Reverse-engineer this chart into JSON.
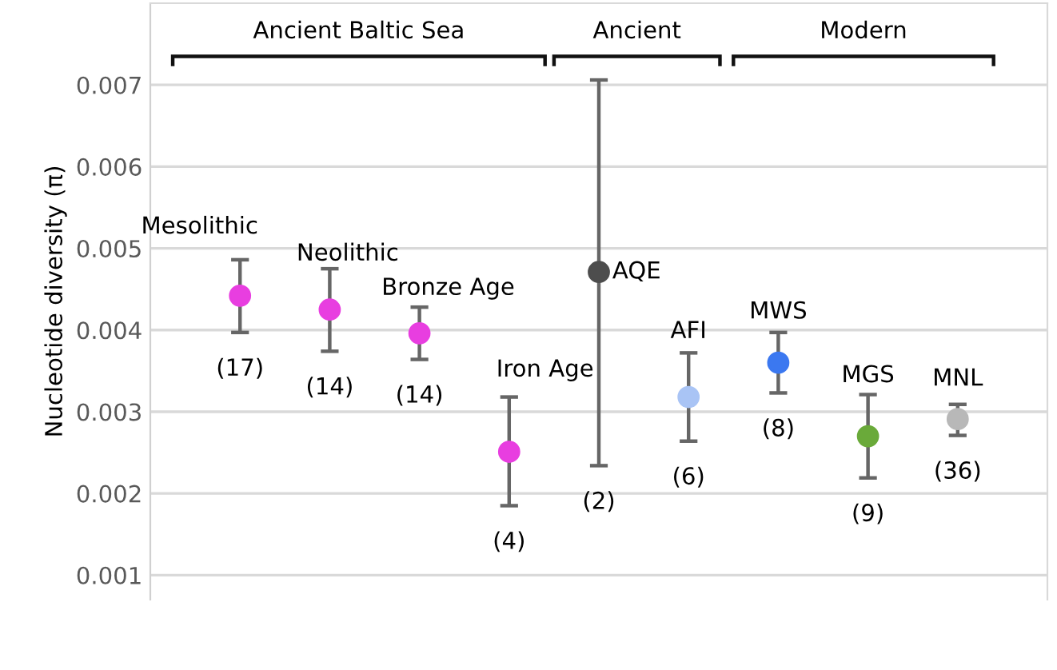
{
  "chart_data": {
    "type": "scatter",
    "ylabel": "Nucleotide diversity (π)",
    "categories": [
      null,
      null,
      null,
      null,
      null,
      null,
      null,
      null,
      null
    ],
    "series": [
      {
        "name": "Mesolithic",
        "color": "#e83ee0",
        "values": [
          0.00442,
          null,
          null,
          null,
          null,
          null,
          null,
          null,
          null
        ],
        "errors": [
          [
            0.00397,
            0.00486
          ],
          null,
          null,
          null,
          null,
          null,
          null,
          null,
          null
        ]
      },
      {
        "name": "Neolithic",
        "color": "#e83ee0",
        "values": [
          null,
          0.00425,
          null,
          null,
          null,
          null,
          null,
          null,
          null
        ],
        "errors": [
          null,
          [
            0.00374,
            0.00475
          ],
          null,
          null,
          null,
          null,
          null,
          null,
          null
        ]
      },
      {
        "name": "Bronze Age",
        "color": "#e83ee0",
        "values": [
          null,
          null,
          0.00396,
          null,
          null,
          null,
          null,
          null,
          null
        ],
        "errors": [
          null,
          null,
          [
            0.00364,
            0.00428
          ],
          null,
          null,
          null,
          null,
          null,
          null
        ]
      },
      {
        "name": "Iron Age",
        "color": "#e83ee0",
        "values": [
          null,
          null,
          null,
          0.00251,
          null,
          null,
          null,
          null,
          null
        ],
        "errors": [
          null,
          null,
          null,
          [
            0.00185,
            0.00318
          ],
          null,
          null,
          null,
          null,
          null
        ]
      },
      {
        "name": "AQE",
        "color": "#4d4d4d",
        "values": [
          null,
          null,
          null,
          null,
          0.00471,
          null,
          null,
          null,
          null
        ],
        "errors": [
          null,
          null,
          null,
          null,
          [
            0.00234,
            0.00706
          ],
          null,
          null,
          null,
          null
        ]
      },
      {
        "name": "AFI",
        "color": "#a9c4f5",
        "values": [
          null,
          null,
          null,
          null,
          null,
          0.00318,
          null,
          null,
          null
        ],
        "errors": [
          null,
          null,
          null,
          null,
          null,
          [
            0.00264,
            0.00372
          ],
          null,
          null,
          null
        ]
      },
      {
        "name": "MWS",
        "color": "#3b78f0",
        "values": [
          null,
          null,
          null,
          null,
          null,
          null,
          0.0036,
          null,
          null
        ],
        "errors": [
          null,
          null,
          null,
          null,
          null,
          null,
          [
            0.00323,
            0.00397
          ],
          null,
          null
        ]
      },
      {
        "name": "MGS",
        "color": "#6aaa3a",
        "values": [
          null,
          null,
          null,
          null,
          null,
          null,
          null,
          0.0027,
          null
        ],
        "errors": [
          null,
          null,
          null,
          null,
          null,
          null,
          null,
          [
            0.00219,
            0.00321
          ],
          null
        ]
      },
      {
        "name": "MNL",
        "color": "#b8b8b8",
        "values": [
          null,
          null,
          null,
          null,
          null,
          null,
          null,
          null,
          0.00291
        ],
        "errors": [
          null,
          null,
          null,
          null,
          null,
          null,
          null,
          null,
          [
            0.00271,
            0.00309
          ]
        ]
      }
    ],
    "ylim": [
      0.0007,
      0.008
    ],
    "yticks": [
      0.001,
      0.002,
      0.003,
      0.004,
      0.005,
      0.006,
      0.007
    ],
    "grid": "y",
    "legend": false,
    "marker": "circle",
    "annotations": [
      "(17)",
      "(14)",
      "(14)",
      "(4)",
      "(2)",
      "(6)",
      "(8)",
      "(9)",
      "(36)",
      "Ancient Baltic Sea",
      "Ancient",
      "Modern"
    ]
  }
}
